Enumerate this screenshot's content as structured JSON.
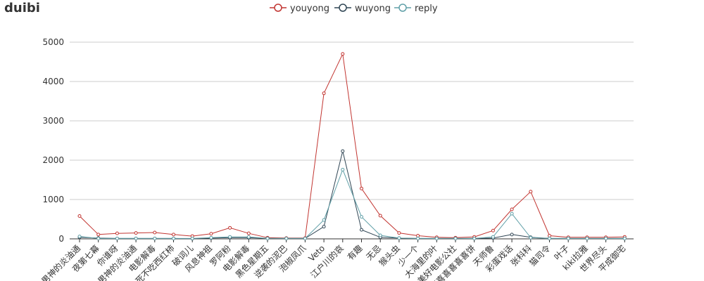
{
  "chart_data": {
    "type": "line",
    "title": "duibi",
    "legend_position": "top-center",
    "grid": "horizontal",
    "ylim": [
      0,
      5000
    ],
    "yticks": [
      0,
      1000,
      2000,
      3000,
      4000,
      5000
    ],
    "categories": [
      "男神的炎油通",
      "夜第七幕",
      "你谁呀",
      "男神的炎油通",
      "电影解毒",
      "死不吃西红柿",
      "破词儿",
      "风息神祖",
      "罗阿粉",
      "电影解毒",
      "黑色星期五",
      "逆袭的泥巴",
      "泡椒凤爪",
      "Veto",
      "江户川的哀",
      "有趣",
      "无忌",
      "猴头虫",
      "少一个",
      "大海里的叶",
      "美好电影公社",
      "喜喜喜喜喜喜饼",
      "天师鲁",
      "彩蛋戏话",
      "张科科",
      "猫司令",
      "叶子",
      "kiki拉雅",
      "世界尽头",
      "平成御宅"
    ],
    "series": [
      {
        "name": "youyong",
        "color": "#c23531",
        "values": [
          580,
          110,
          140,
          150,
          160,
          110,
          70,
          130,
          280,
          140,
          30,
          20,
          20,
          3700,
          4700,
          1280,
          590,
          150,
          80,
          40,
          30,
          50,
          210,
          750,
          1200,
          80,
          40,
          40,
          40,
          50
        ]
      },
      {
        "name": "wuyong",
        "color": "#2f4554",
        "values": [
          40,
          20,
          10,
          10,
          10,
          10,
          5,
          20,
          30,
          30,
          10,
          10,
          10,
          310,
          2230,
          230,
          40,
          20,
          10,
          10,
          10,
          10,
          20,
          110,
          40,
          10,
          10,
          10,
          10,
          10
        ]
      },
      {
        "name": "reply",
        "color": "#61a0a8",
        "values": [
          60,
          10,
          10,
          10,
          10,
          10,
          10,
          30,
          50,
          50,
          10,
          10,
          10,
          480,
          1760,
          560,
          90,
          20,
          10,
          10,
          10,
          10,
          50,
          640,
          30,
          10,
          10,
          10,
          10,
          10
        ]
      }
    ]
  }
}
